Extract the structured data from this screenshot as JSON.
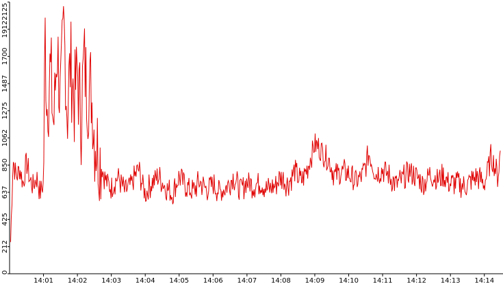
{
  "chart_data": {
    "type": "line",
    "title": "",
    "xlabel": "",
    "ylabel": "",
    "y_ticks": [
      0,
      212,
      425,
      637,
      850,
      1062,
      1275,
      1487,
      1700,
      1912,
      2125
    ],
    "ylim": [
      0,
      2125
    ],
    "x_ticks": [
      "14:01",
      "14:02",
      "14:03",
      "14:04",
      "14:05",
      "14:06",
      "14:07",
      "14:08",
      "14:09",
      "14:10",
      "14:11",
      "14:12",
      "14:13",
      "14:14"
    ],
    "x_range_minutes": [
      "14:00:02",
      "14:14:30"
    ],
    "grid": false,
    "legend": "none",
    "line_color": "#e00000",
    "series": [
      {
        "x_minutes_after_14_00": [
          0.03,
          0.1,
          0.2,
          0.3,
          0.4,
          0.5,
          0.6,
          0.7,
          0.8,
          0.9,
          1.0,
          1.05,
          1.1,
          1.2,
          1.3,
          1.4,
          1.5,
          1.6,
          1.7,
          1.8,
          1.9,
          2.0,
          2.1,
          2.2,
          2.3,
          2.4,
          2.5,
          2.6,
          2.7,
          2.8,
          2.9,
          3.0,
          3.2,
          3.4,
          3.6,
          3.8,
          4.0,
          4.2,
          4.4,
          4.6,
          4.8,
          5.0,
          5.2,
          5.4,
          5.6,
          5.8,
          6.0,
          6.2,
          6.4,
          6.6,
          6.8,
          7.0,
          7.2,
          7.4,
          7.6,
          7.8,
          8.0,
          8.2,
          8.4,
          8.6,
          8.8,
          9.0,
          9.2,
          9.4,
          9.6,
          9.8,
          10.0,
          10.2,
          10.4,
          10.6,
          10.8,
          11.0,
          11.2,
          11.4,
          11.6,
          11.8,
          12.0,
          12.2,
          12.4,
          12.6,
          12.8,
          13.0,
          13.2,
          13.4,
          13.6,
          13.8,
          14.0,
          14.2,
          14.4,
          14.48
        ],
        "values": [
          250,
          900,
          760,
          820,
          700,
          880,
          730,
          690,
          760,
          640,
          700,
          1900,
          1300,
          1600,
          1150,
          1800,
          1300,
          1950,
          1250,
          1700,
          1350,
          1600,
          1200,
          1700,
          1400,
          1450,
          1100,
          960,
          850,
          760,
          700,
          680,
          760,
          640,
          700,
          820,
          620,
          720,
          760,
          680,
          620,
          760,
          690,
          640,
          720,
          660,
          700,
          640,
          680,
          760,
          650,
          720,
          690,
          720,
          660,
          680,
          760,
          700,
          800,
          720,
          840,
          1020,
          960,
          900,
          760,
          800,
          780,
          720,
          760,
          940,
          780,
          820,
          760,
          700,
          740,
          800,
          760,
          700,
          780,
          740,
          760,
          700,
          720,
          680,
          720,
          760,
          700,
          920,
          760,
          980
        ]
      }
    ]
  }
}
